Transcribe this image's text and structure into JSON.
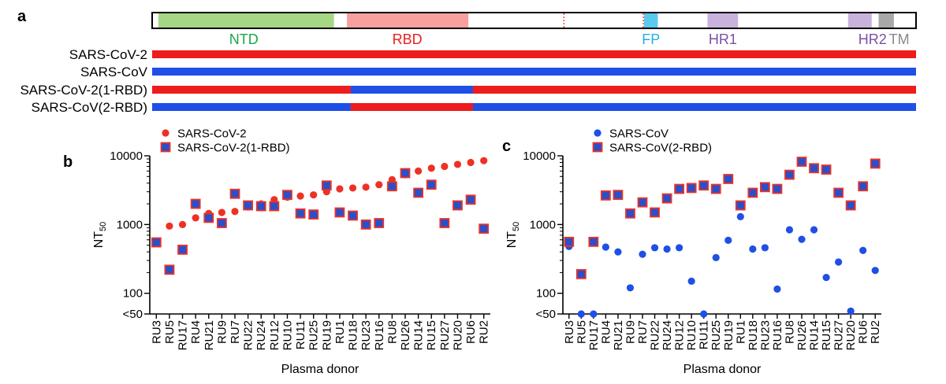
{
  "panel_a": {
    "label": "a",
    "domains": [
      {
        "name": "NTD",
        "color": "#a6d785",
        "text_color": "#1aa84a"
      },
      {
        "name": "RBD",
        "color": "#f8a0a0",
        "text_color": "#e8211d"
      },
      {
        "name": "FP",
        "color": "#5bc8f0",
        "text_color": "#29aee3"
      },
      {
        "name": "HR1",
        "color": "#c9b3dd",
        "text_color": "#7b4fa6"
      },
      {
        "name": "HR2",
        "color": "#c9b3dd",
        "text_color": "#7b4fa6"
      },
      {
        "name": "TM",
        "color": "#a8a8a8",
        "text_color": "#8a8a8a"
      }
    ],
    "constructs": [
      {
        "name": "SARS-CoV-2",
        "segments": [
          {
            "color": "#ee1c1c",
            "from": 0,
            "to": 1
          }
        ]
      },
      {
        "name": "SARS-CoV",
        "segments": [
          {
            "color": "#1f4fe6",
            "from": 0,
            "to": 1
          }
        ]
      },
      {
        "name": "SARS-CoV-2(1-RBD)",
        "segments": [
          {
            "color": "#ee1c1c",
            "from": 0,
            "to": 0.26
          },
          {
            "color": "#1f4fe6",
            "from": 0.26,
            "to": 0.42
          },
          {
            "color": "#ee1c1c",
            "from": 0.42,
            "to": 1
          }
        ]
      },
      {
        "name": "SARS-CoV(2-RBD)",
        "segments": [
          {
            "color": "#1f4fe6",
            "from": 0,
            "to": 0.26
          },
          {
            "color": "#ee1c1c",
            "from": 0.26,
            "to": 0.42
          },
          {
            "color": "#1f4fe6",
            "from": 0.42,
            "to": 1
          }
        ]
      }
    ]
  },
  "chart_data": [
    {
      "panel": "b",
      "type": "scatter",
      "xlabel": "Plasma donor",
      "ylabel": "NT",
      "ylabel_sub": "50",
      "yscale": "log",
      "ylim": [
        50,
        10000
      ],
      "yticks": [
        "10000",
        "1000",
        "100",
        "<50"
      ],
      "categories": [
        "RU3",
        "RU5",
        "RU17",
        "RU4",
        "RU21",
        "RU9",
        "RU7",
        "RU22",
        "RU24",
        "RU12",
        "RU10",
        "RU11",
        "RU25",
        "RU19",
        "RU1",
        "RU18",
        "RU23",
        "RU16",
        "RU8",
        "RU26",
        "RU14",
        "RU15",
        "RU27",
        "RU20",
        "RU6",
        "RU2"
      ],
      "series": [
        {
          "name": "SARS-CoV-2",
          "marker": "circle",
          "color": "#ee3124",
          "values": [
            null,
            950,
            1000,
            1250,
            1450,
            1500,
            1550,
            1800,
            2000,
            2300,
            2500,
            2600,
            2700,
            3000,
            3300,
            3400,
            3500,
            3800,
            4500,
            5300,
            6000,
            6600,
            7000,
            7500,
            8000,
            8500
          ]
        },
        {
          "name": "SARS-CoV-2(1-RBD)",
          "marker": "square",
          "color": "#2b4fc9",
          "edge": "#ee3124",
          "values": [
            550,
            220,
            430,
            2000,
            1250,
            1050,
            2800,
            1900,
            1850,
            1850,
            2700,
            1450,
            1400,
            3700,
            1500,
            1350,
            1000,
            1050,
            3600,
            5600,
            2900,
            3800,
            1050,
            1900,
            2300,
            870
          ]
        }
      ]
    },
    {
      "panel": "c",
      "type": "scatter",
      "xlabel": "Plasma donor",
      "ylabel": "NT",
      "ylabel_sub": "50",
      "yscale": "log",
      "ylim": [
        50,
        10000
      ],
      "yticks": [
        "10000",
        "1000",
        "100",
        "<50"
      ],
      "categories": [
        "RU3",
        "RU5",
        "RU17",
        "RU4",
        "RU21",
        "RU9",
        "RU7",
        "RU22",
        "RU24",
        "RU12",
        "RU10",
        "RU11",
        "RU25",
        "RU19",
        "RU1",
        "RU18",
        "RU23",
        "RU16",
        "RU8",
        "RU26",
        "RU14",
        "RU15",
        "RU27",
        "RU20",
        "RU6",
        "RU2"
      ],
      "series": [
        {
          "name": "SARS-CoV",
          "marker": "circle",
          "color": "#1f4fe6",
          "values": [
            480,
            50,
            50,
            470,
            400,
            120,
            370,
            460,
            440,
            460,
            150,
            50,
            330,
            590,
            1300,
            440,
            460,
            115,
            840,
            610,
            840,
            170,
            285,
            55,
            420,
            215
          ]
        },
        {
          "name": "SARS-CoV(2-RBD)",
          "marker": "square",
          "color": "#2b4fc9",
          "edge": "#ee3124",
          "values": [
            560,
            190,
            560,
            2650,
            2700,
            1450,
            2100,
            1500,
            2400,
            3300,
            3400,
            3700,
            3300,
            4600,
            1900,
            2900,
            3500,
            3300,
            5300,
            8200,
            6600,
            6300,
            2900,
            1900,
            3600,
            7700
          ]
        }
      ]
    }
  ]
}
